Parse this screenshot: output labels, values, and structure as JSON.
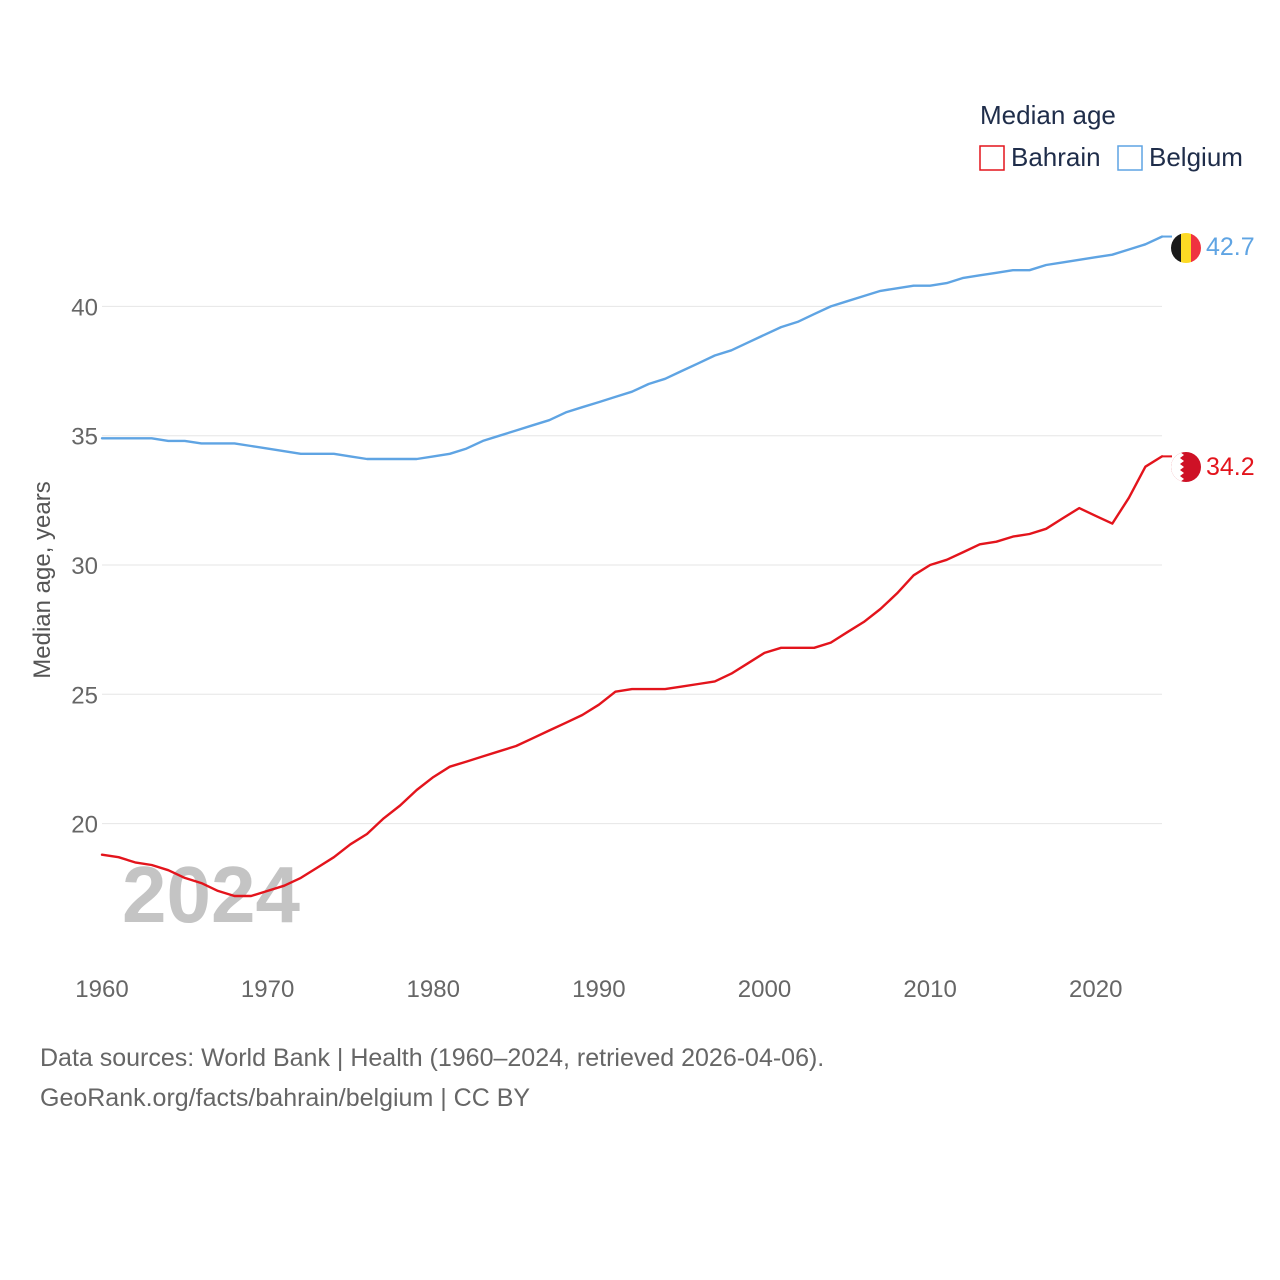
{
  "chart_data": {
    "type": "line",
    "title": "Median age",
    "ylabel": "Median age, years",
    "xlabel": "",
    "watermark_year": "2024",
    "xlim": [
      1960,
      2024
    ],
    "ylim": [
      15.5,
      44.5
    ],
    "x_ticks": [
      1960,
      1970,
      1980,
      1990,
      2000,
      2010,
      2020
    ],
    "y_ticks": [
      20,
      25,
      30,
      35,
      40
    ],
    "grid": true,
    "legend": {
      "title": "Median age",
      "position": "top-right",
      "entries": [
        "Bahrain",
        "Belgium"
      ]
    },
    "x": [
      1960,
      1961,
      1962,
      1963,
      1964,
      1965,
      1966,
      1967,
      1968,
      1969,
      1970,
      1971,
      1972,
      1973,
      1974,
      1975,
      1976,
      1977,
      1978,
      1979,
      1980,
      1981,
      1982,
      1983,
      1984,
      1985,
      1986,
      1987,
      1988,
      1989,
      1990,
      1991,
      1992,
      1993,
      1994,
      1995,
      1996,
      1997,
      1998,
      1999,
      2000,
      2001,
      2002,
      2003,
      2004,
      2005,
      2006,
      2007,
      2008,
      2009,
      2010,
      2011,
      2012,
      2013,
      2014,
      2015,
      2016,
      2017,
      2018,
      2019,
      2020,
      2021,
      2022,
      2023,
      2024
    ],
    "series": [
      {
        "name": "Bahrain",
        "color": "#e3141c",
        "end_label": "34.2",
        "values": [
          18.8,
          18.7,
          18.5,
          18.4,
          18.2,
          17.9,
          17.7,
          17.4,
          17.2,
          17.2,
          17.4,
          17.6,
          17.9,
          18.3,
          18.7,
          19.2,
          19.6,
          20.2,
          20.7,
          21.3,
          21.8,
          22.2,
          22.4,
          22.6,
          22.8,
          23.0,
          23.3,
          23.6,
          23.9,
          24.2,
          24.6,
          25.1,
          25.2,
          25.2,
          25.2,
          25.3,
          25.4,
          25.5,
          25.8,
          26.2,
          26.6,
          26.8,
          26.8,
          26.8,
          27.0,
          27.4,
          27.8,
          28.3,
          28.9,
          29.6,
          30.0,
          30.2,
          30.5,
          30.8,
          30.9,
          31.1,
          31.2,
          31.4,
          31.8,
          32.2,
          31.9,
          31.6,
          32.6,
          33.8,
          34.2
        ]
      },
      {
        "name": "Belgium",
        "color": "#5fa4e3",
        "end_label": "42.7",
        "values": [
          34.9,
          34.9,
          34.9,
          34.9,
          34.8,
          34.8,
          34.7,
          34.7,
          34.7,
          34.6,
          34.5,
          34.4,
          34.3,
          34.3,
          34.3,
          34.2,
          34.1,
          34.1,
          34.1,
          34.1,
          34.2,
          34.3,
          34.5,
          34.8,
          35.0,
          35.2,
          35.4,
          35.6,
          35.9,
          36.1,
          36.3,
          36.5,
          36.7,
          37.0,
          37.2,
          37.5,
          37.8,
          38.1,
          38.3,
          38.6,
          38.9,
          39.2,
          39.4,
          39.7,
          40.0,
          40.2,
          40.4,
          40.6,
          40.7,
          40.8,
          40.8,
          40.9,
          41.1,
          41.2,
          41.3,
          41.4,
          41.4,
          41.6,
          41.7,
          41.8,
          41.9,
          42.0,
          42.2,
          42.4,
          42.7
        ]
      }
    ]
  },
  "footer": {
    "line1": "Data sources: World Bank | Health (1960–2024, retrieved 2026-04-06).",
    "line2": "GeoRank.org/facts/bahrain/belgium | CC BY"
  }
}
